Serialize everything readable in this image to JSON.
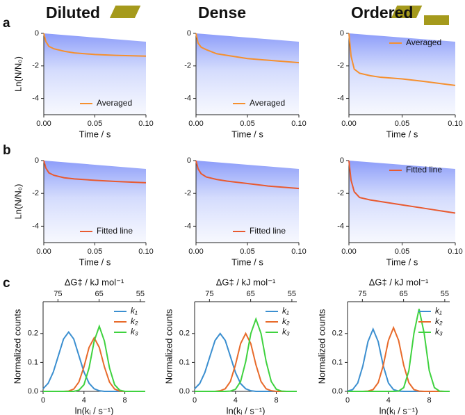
{
  "chart_data": [
    {
      "type": "line",
      "title": "Diluted",
      "title_color": "#3dbd8c",
      "panel_label": "a",
      "ylabel": "Ln(N/N₀)",
      "xlabel": "Time / s",
      "x": [
        0,
        0.002,
        0.005,
        0.01,
        0.02,
        0.03,
        0.05,
        0.07,
        0.1
      ],
      "series": [
        {
          "name": "Averaged",
          "color": "#f5902f",
          "values": [
            0,
            -0.5,
            -0.8,
            -0.95,
            -1.1,
            -1.2,
            -1.3,
            -1.35,
            -1.4
          ]
        }
      ],
      "xlim": [
        0,
        0.1
      ],
      "ylim": [
        -5,
        0
      ],
      "xticks": [
        {
          "value": 0,
          "label": "0.00"
        },
        {
          "value": 0.05,
          "label": "0.05"
        },
        {
          "value": 0.1,
          "label": "0.10"
        }
      ],
      "yticks": [
        0,
        -2,
        -4
      ],
      "legend": "lower right"
    },
    {
      "type": "line",
      "title": "Dense",
      "title_color": "#2a55e0",
      "xlabel": "Time / s",
      "x": [
        0,
        0.002,
        0.005,
        0.01,
        0.02,
        0.03,
        0.05,
        0.07,
        0.1
      ],
      "series": [
        {
          "name": "Averaged",
          "color": "#f5902f",
          "values": [
            0,
            -0.6,
            -0.85,
            -1.0,
            -1.25,
            -1.35,
            -1.55,
            -1.65,
            -1.8
          ]
        }
      ],
      "xlim": [
        0,
        0.1
      ],
      "ylim": [
        -5,
        0
      ],
      "xticks": [
        {
          "value": 0,
          "label": "0.00"
        },
        {
          "value": 0.05,
          "label": "0.05"
        },
        {
          "value": 0.1,
          "label": "0.10"
        }
      ],
      "yticks": [
        0,
        -2,
        -4
      ],
      "legend": "lower right"
    },
    {
      "type": "line",
      "title": "Ordered",
      "title_color": "#4a2fcf",
      "xlabel": "Time / s",
      "x": [
        0,
        0.002,
        0.005,
        0.01,
        0.02,
        0.03,
        0.05,
        0.07,
        0.1
      ],
      "series": [
        {
          "name": "Averaged",
          "color": "#f5902f",
          "values": [
            0,
            -1.4,
            -2.2,
            -2.45,
            -2.6,
            -2.7,
            -2.8,
            -2.95,
            -3.2
          ]
        }
      ],
      "xlim": [
        0,
        0.1
      ],
      "ylim": [
        -5,
        0
      ],
      "xticks": [
        {
          "value": 0,
          "label": "0.00"
        },
        {
          "value": 0.05,
          "label": "0.05"
        },
        {
          "value": 0.1,
          "label": "0.10"
        }
      ],
      "yticks": [
        0,
        -2,
        -4
      ],
      "legend": "upper right"
    },
    {
      "type": "line",
      "panel_label": "b",
      "ylabel": "Ln(N/N₀)",
      "xlabel": "Time / s",
      "x": [
        0,
        0.002,
        0.005,
        0.01,
        0.02,
        0.03,
        0.05,
        0.07,
        0.1
      ],
      "series": [
        {
          "name": "Fitted line",
          "color": "#e85a30",
          "values": [
            0,
            -0.45,
            -0.75,
            -0.9,
            -1.05,
            -1.12,
            -1.2,
            -1.27,
            -1.35
          ]
        }
      ],
      "xlim": [
        0,
        0.1
      ],
      "ylim": [
        -5,
        0
      ],
      "xticks": [
        {
          "value": 0,
          "label": "0.00"
        },
        {
          "value": 0.05,
          "label": "0.05"
        },
        {
          "value": 0.1,
          "label": "0.10"
        }
      ],
      "yticks": [
        0,
        -2,
        -4
      ],
      "legend": "lower right"
    },
    {
      "type": "line",
      "xlabel": "Time / s",
      "x": [
        0,
        0.002,
        0.005,
        0.01,
        0.02,
        0.03,
        0.05,
        0.07,
        0.1
      ],
      "series": [
        {
          "name": "Fitted line",
          "color": "#e85a30",
          "values": [
            0,
            -0.5,
            -0.8,
            -1.0,
            -1.15,
            -1.25,
            -1.4,
            -1.55,
            -1.7
          ]
        }
      ],
      "xlim": [
        0,
        0.1
      ],
      "ylim": [
        -5,
        0
      ],
      "xticks": [
        {
          "value": 0,
          "label": "0.00"
        },
        {
          "value": 0.05,
          "label": "0.05"
        },
        {
          "value": 0.1,
          "label": "0.10"
        }
      ],
      "yticks": [
        0,
        -2,
        -4
      ],
      "legend": "lower right"
    },
    {
      "type": "line",
      "xlabel": "Time / s",
      "x": [
        0,
        0.002,
        0.005,
        0.01,
        0.02,
        0.03,
        0.05,
        0.07,
        0.1
      ],
      "series": [
        {
          "name": "Fitted line",
          "color": "#e85a30",
          "values": [
            0,
            -1.2,
            -1.9,
            -2.25,
            -2.4,
            -2.5,
            -2.7,
            -2.9,
            -3.2
          ]
        }
      ],
      "xlim": [
        0,
        0.1
      ],
      "ylim": [
        -5,
        0
      ],
      "xticks": [
        {
          "value": 0,
          "label": "0.00"
        },
        {
          "value": 0.05,
          "label": "0.05"
        },
        {
          "value": 0.1,
          "label": "0.10"
        }
      ],
      "yticks": [
        0,
        -2,
        -4
      ],
      "legend": "upper right"
    },
    {
      "type": "line",
      "panel_label": "c",
      "ylabel": "Normalized counts",
      "xlabel": "ln(kᵢ / s⁻¹)",
      "x2label": "ΔG‡ / kJ mol⁻¹",
      "x": [
        0,
        0.5,
        1,
        1.5,
        2,
        2.5,
        3,
        3.5,
        4,
        4.5,
        5,
        5.5,
        6,
        6.5,
        7,
        7.5,
        8,
        8.5,
        9,
        9.5,
        10
      ],
      "series": [
        {
          "name": "k₁",
          "color": "#3b8fd0",
          "values": [
            0.009,
            0.028,
            0.067,
            0.124,
            0.181,
            0.205,
            0.181,
            0.124,
            0.067,
            0.028,
            0.009,
            0.002,
            0,
            0,
            0,
            0,
            0,
            0,
            0,
            0,
            0
          ]
        },
        {
          "name": "k₂",
          "color": "#e86a2a",
          "values": [
            0,
            0,
            0,
            0,
            0,
            0.001,
            0.008,
            0.032,
            0.085,
            0.152,
            0.185,
            0.152,
            0.085,
            0.032,
            0.008,
            0.001,
            0,
            0,
            0,
            0,
            0
          ]
        },
        {
          "name": "k₃",
          "color": "#3fd23f",
          "values": [
            0,
            0,
            0,
            0,
            0,
            0,
            0,
            0.004,
            0.023,
            0.081,
            0.174,
            0.225,
            0.174,
            0.081,
            0.023,
            0.004,
            0,
            0,
            0,
            0,
            0
          ]
        }
      ],
      "xlim": [
        0,
        10
      ],
      "ylim": [
        0,
        0.31
      ],
      "x2lim": [
        78.6,
        53.8
      ],
      "xticks": [
        0,
        4,
        8
      ],
      "x2ticks": [
        75,
        65,
        55
      ],
      "yticks": [
        {
          "value": 0,
          "label": "0.0"
        },
        {
          "value": 0.1,
          "label": "0.1"
        },
        {
          "value": 0.2,
          "label": "0.2"
        }
      ],
      "legend": "upper right"
    },
    {
      "type": "line",
      "ylabel": "Normalized counts",
      "xlabel": "ln(kᵢ / s⁻¹)",
      "x2label": "ΔG‡ / kJ mol⁻¹",
      "x": [
        0,
        0.5,
        1,
        1.5,
        2,
        2.5,
        3,
        3.5,
        4,
        4.5,
        5,
        5.5,
        6,
        6.5,
        7,
        7.5,
        8,
        8.5,
        9,
        9.5,
        10
      ],
      "series": [
        {
          "name": "k₁",
          "color": "#3b8fd0",
          "values": [
            0.009,
            0.027,
            0.065,
            0.121,
            0.176,
            0.2,
            0.176,
            0.121,
            0.065,
            0.027,
            0.009,
            0.002,
            0,
            0,
            0,
            0,
            0,
            0,
            0,
            0,
            0
          ]
        },
        {
          "name": "k₂",
          "color": "#e86a2a",
          "values": [
            0,
            0,
            0,
            0,
            0,
            0.002,
            0.009,
            0.034,
            0.092,
            0.165,
            0.2,
            0.165,
            0.092,
            0.034,
            0.009,
            0.002,
            0,
            0,
            0,
            0,
            0
          ]
        },
        {
          "name": "k₃",
          "color": "#3fd23f",
          "values": [
            0,
            0,
            0,
            0,
            0,
            0,
            0,
            0.001,
            0.007,
            0.034,
            0.103,
            0.2,
            0.25,
            0.2,
            0.103,
            0.034,
            0.007,
            0.001,
            0,
            0,
            0
          ]
        }
      ],
      "xlim": [
        0,
        10
      ],
      "ylim": [
        0,
        0.31
      ],
      "x2lim": [
        78.6,
        53.8
      ],
      "xticks": [
        0,
        4,
        8
      ],
      "x2ticks": [
        75,
        65,
        55
      ],
      "yticks": [
        {
          "value": 0,
          "label": "0.0"
        },
        {
          "value": 0.1,
          "label": "0.1"
        },
        {
          "value": 0.2,
          "label": "0.2"
        }
      ],
      "legend": "upper right"
    },
    {
      "type": "line",
      "ylabel": "Normalized counts",
      "xlabel": "ln(kᵢ / s⁻¹)",
      "x2label": "ΔG‡ / kJ mol⁻¹",
      "x": [
        0,
        0.5,
        1,
        1.5,
        2,
        2.5,
        3,
        3.5,
        4,
        4.5,
        5,
        5.5,
        6,
        6.5,
        7,
        7.5,
        8,
        8.5,
        9,
        9.5,
        10
      ],
      "series": [
        {
          "name": "k₁",
          "color": "#3b8fd0",
          "values": [
            0.001,
            0.006,
            0.029,
            0.088,
            0.172,
            0.215,
            0.172,
            0.088,
            0.029,
            0.006,
            0.001,
            0,
            0,
            0,
            0,
            0,
            0,
            0,
            0,
            0,
            0
          ]
        },
        {
          "name": "k₂",
          "color": "#e86a2a",
          "values": [
            0,
            0,
            0,
            0,
            0.001,
            0.006,
            0.03,
            0.09,
            0.176,
            0.22,
            0.176,
            0.09,
            0.03,
            0.006,
            0.001,
            0,
            0,
            0,
            0,
            0,
            0
          ]
        },
        {
          "name": "k₃",
          "color": "#3fd23f",
          "values": [
            0,
            0,
            0,
            0,
            0,
            0,
            0,
            0,
            0,
            0,
            0.001,
            0.013,
            0.071,
            0.201,
            0.285,
            0.201,
            0.071,
            0.013,
            0.001,
            0,
            0
          ]
        }
      ],
      "xlim": [
        0,
        10
      ],
      "ylim": [
        0,
        0.31
      ],
      "x2lim": [
        78.6,
        53.8
      ],
      "xticks": [
        0,
        4,
        8
      ],
      "x2ticks": [
        75,
        65,
        55
      ],
      "yticks": [
        {
          "value": 0,
          "label": "0.0"
        },
        {
          "value": 0.1,
          "label": "0.1"
        },
        {
          "value": 0.2,
          "label": "0.2"
        }
      ],
      "legend": "upper right"
    }
  ]
}
